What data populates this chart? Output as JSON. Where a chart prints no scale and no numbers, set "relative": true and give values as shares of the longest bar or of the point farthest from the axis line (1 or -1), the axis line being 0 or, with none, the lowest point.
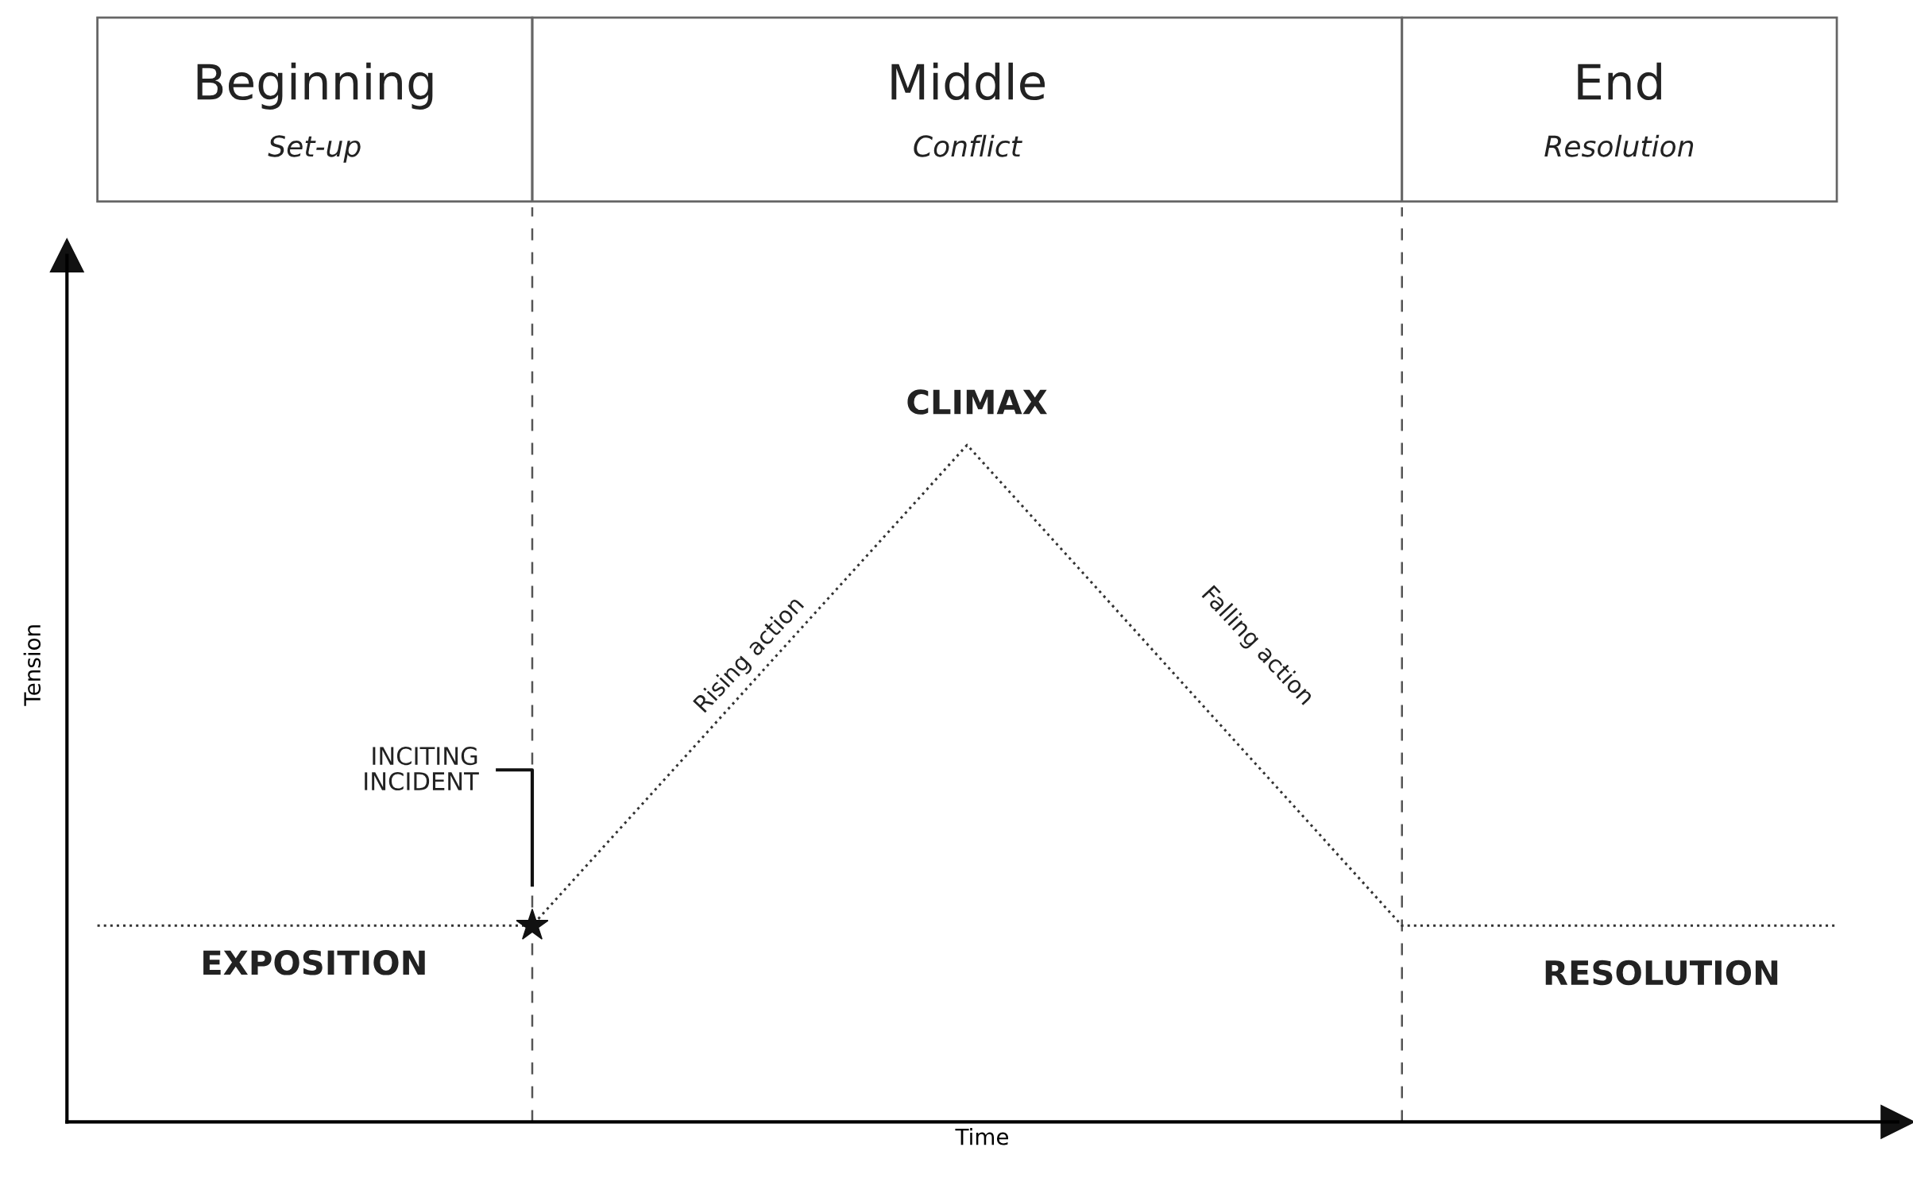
{
  "chart_data": {
    "type": "line",
    "relative": true,
    "xlabel": "Time",
    "ylabel": "Tension",
    "categories": [
      null,
      null,
      null,
      null,
      null
    ],
    "series": [
      {
        "color": "#333333",
        "line_style": "dotted",
        "marker": "none",
        "values": [
          0.29,
          0.29,
          1,
          0.29,
          0.29
        ]
      }
    ],
    "annotations": [
      "Beginning",
      "Set-up",
      "Middle",
      "Conflict",
      "End",
      "Resolution",
      "EXPOSITION",
      "INCITING\nINCIDENT",
      "Rising action",
      "CLIMAX",
      "Falling action",
      "RESOLUTION"
    ]
  }
}
